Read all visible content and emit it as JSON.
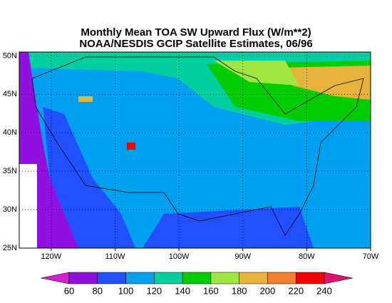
{
  "chart_data": {
    "type": "map",
    "title": "Monthly Mean TOA SW Upward Flux (W/m**2)",
    "subtitle": "NOAA/NESDIS GCIP Satellite Estimates, 06/96",
    "xlim": [
      -125,
      -70
    ],
    "ylim": [
      25,
      50.5
    ],
    "xticks": [
      {
        "value": -120,
        "label": "120W"
      },
      {
        "value": -110,
        "label": "110W"
      },
      {
        "value": -100,
        "label": "100W"
      },
      {
        "value": -90,
        "label": "90W"
      },
      {
        "value": -80,
        "label": "80W"
      },
      {
        "value": -70,
        "label": "70W"
      }
    ],
    "yticks": [
      {
        "value": 25,
        "label": "25N"
      },
      {
        "value": 30,
        "label": "30N"
      },
      {
        "value": 35,
        "label": "35N"
      },
      {
        "value": 40,
        "label": "40N"
      },
      {
        "value": 45,
        "label": "45N"
      },
      {
        "value": 50,
        "label": "50N"
      }
    ],
    "grid": true,
    "colorbar": {
      "levels": [
        60,
        80,
        100,
        120,
        140,
        160,
        180,
        200,
        220,
        240
      ],
      "colors": [
        "#d020d0",
        "#9010e0",
        "#2050ff",
        "#00a0f0",
        "#00d0a0",
        "#00cc00",
        "#a0e640",
        "#e6b43c",
        "#f08030",
        "#f00000",
        "#e01070"
      ]
    }
  }
}
